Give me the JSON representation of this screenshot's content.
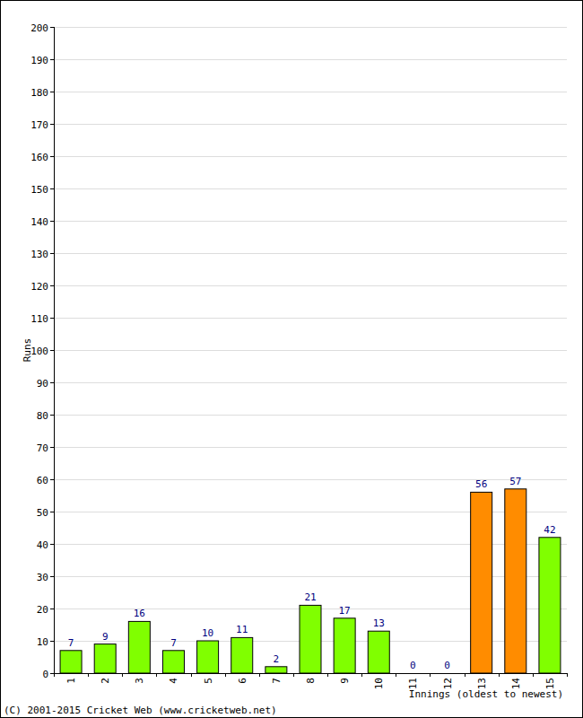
{
  "chart_data": {
    "type": "bar",
    "x_label": "Innings (oldest to newest)",
    "y_label": "Runs",
    "annotations": [
      "(C) 2001-2015 Cricket Web (www.cricketweb.net)"
    ],
    "categories": [
      "1",
      "2",
      "3",
      "4",
      "5",
      "6",
      "7",
      "8",
      "9",
      "10",
      "11",
      "12",
      "13",
      "14",
      "15"
    ],
    "values": [
      7,
      9,
      16,
      7,
      10,
      11,
      2,
      21,
      17,
      13,
      0,
      0,
      56,
      57,
      42
    ],
    "colors": [
      "#80ff00",
      "#80ff00",
      "#80ff00",
      "#80ff00",
      "#80ff00",
      "#80ff00",
      "#80ff00",
      "#80ff00",
      "#80ff00",
      "#80ff00",
      "#80ff00",
      "#80ff00",
      "#ff8c00",
      "#ff8c00",
      "#80ff00"
    ],
    "ylim": [
      0,
      200
    ],
    "yticks": [
      0,
      10,
      20,
      30,
      40,
      50,
      60,
      70,
      80,
      90,
      100,
      110,
      120,
      130,
      140,
      150,
      160,
      170,
      180,
      190,
      200
    ],
    "grid": true,
    "data_labels": true
  }
}
